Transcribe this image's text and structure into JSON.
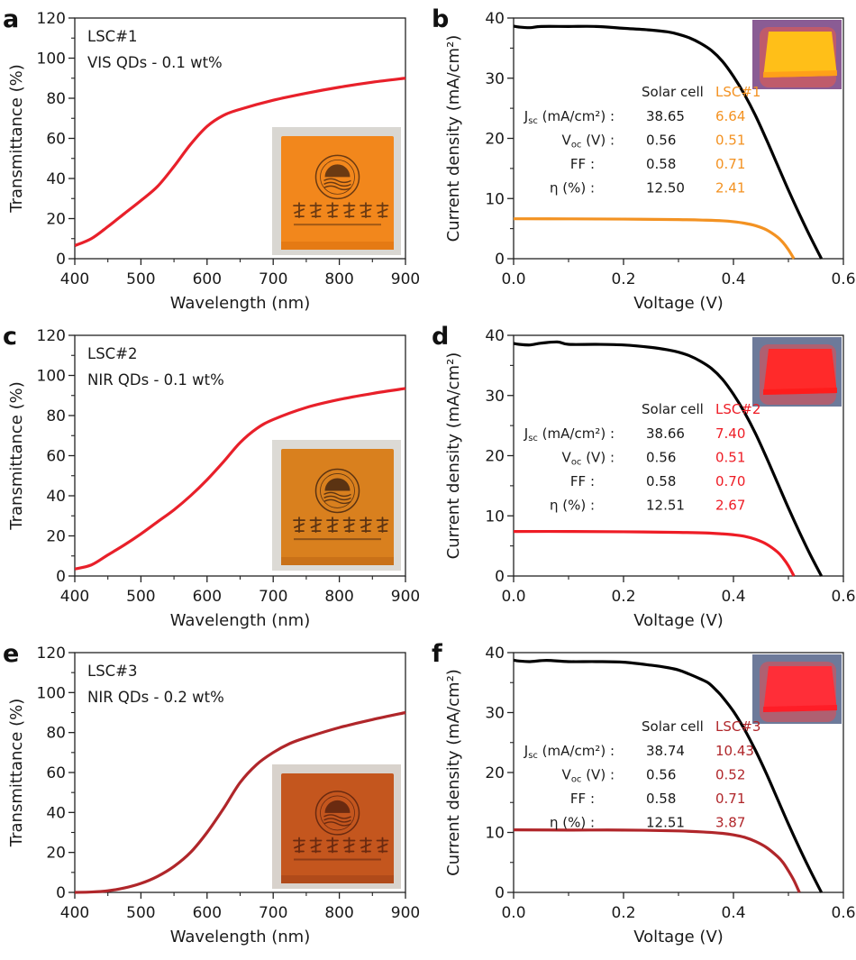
{
  "figure": {
    "panels": [
      "a",
      "b",
      "c",
      "d",
      "e",
      "f"
    ]
  },
  "chart_data": [
    {
      "id": "a",
      "panel_letter": "a",
      "type": "line",
      "xlabel": "Wavelength (nm)",
      "ylabel": "Transmittance (%)",
      "xlim": [
        400,
        900
      ],
      "ylim": [
        0,
        120
      ],
      "xticks": [
        400,
        500,
        600,
        700,
        800,
        900
      ],
      "yticks": [
        0,
        20,
        40,
        60,
        80,
        100,
        120
      ],
      "annotation": [
        "LSC#1",
        "VIS QDs - 0.1 wt%"
      ],
      "inset": "photo of orange LSC slab with Ocean University of China logo",
      "series": [
        {
          "name": "LSC#1",
          "color": "#e8202a",
          "x": [
            400,
            425,
            450,
            475,
            500,
            525,
            550,
            575,
            600,
            625,
            650,
            700,
            750,
            800,
            850,
            900
          ],
          "y": [
            6.5,
            10,
            16,
            22.5,
            29,
            36,
            46,
            57,
            66,
            71.5,
            74.5,
            79,
            82.5,
            85.5,
            88,
            90
          ]
        }
      ]
    },
    {
      "id": "b",
      "panel_letter": "b",
      "type": "line",
      "xlabel": "Voltage (V)",
      "ylabel": "Current density (mA/cm²)",
      "xlim": [
        0.0,
        0.6
      ],
      "ylim": [
        0,
        40
      ],
      "xticks": [
        0.0,
        0.2,
        0.4,
        0.6
      ],
      "xtick_labels": [
        "0.0",
        "0.2",
        "0.4",
        "0.6"
      ],
      "yticks": [
        0,
        10,
        20,
        30,
        40
      ],
      "inset": "photo of LSC slab glowing yellow-orange under UV",
      "table": {
        "headers": [
          "",
          "Solar cell",
          "LSC#1"
        ],
        "rows": [
          {
            "label": "J",
            "label_sub": "sc",
            "label_tail": " (mA/cm²) :",
            "solar": "38.65",
            "lsc": "6.64"
          },
          {
            "label": "V",
            "label_sub": "oc",
            "label_tail": " (V) :",
            "solar": "0.56",
            "lsc": "0.51"
          },
          {
            "label": "FF :",
            "label_sub": "",
            "label_tail": "",
            "solar": "0.58",
            "lsc": "0.71"
          },
          {
            "label": "η (%) :",
            "label_sub": "",
            "label_tail": "",
            "solar": "12.50",
            "lsc": "2.41"
          }
        ]
      },
      "series": [
        {
          "name": "Solar cell",
          "color": "#000000",
          "x": [
            0.0,
            0.01,
            0.03,
            0.05,
            0.1,
            0.15,
            0.2,
            0.25,
            0.28,
            0.3,
            0.32,
            0.34,
            0.36,
            0.38,
            0.4,
            0.42,
            0.44,
            0.46,
            0.48,
            0.5,
            0.52,
            0.54,
            0.56
          ],
          "y": [
            38.65,
            38.5,
            38.4,
            38.6,
            38.6,
            38.6,
            38.3,
            38.0,
            37.7,
            37.3,
            36.7,
            35.8,
            34.6,
            32.8,
            30.3,
            27.3,
            23.8,
            19.8,
            15.6,
            11.4,
            7.4,
            3.6,
            0
          ]
        },
        {
          "name": "LSC#1",
          "color": "#f39222",
          "x": [
            0.0,
            0.1,
            0.2,
            0.3,
            0.35,
            0.38,
            0.4,
            0.42,
            0.44,
            0.46,
            0.48,
            0.49,
            0.5,
            0.51
          ],
          "y": [
            6.64,
            6.62,
            6.58,
            6.5,
            6.4,
            6.3,
            6.15,
            5.9,
            5.5,
            4.8,
            3.6,
            2.7,
            1.5,
            0
          ]
        }
      ]
    },
    {
      "id": "c",
      "panel_letter": "c",
      "type": "line",
      "xlabel": "Wavelength (nm)",
      "ylabel": "Transmittance (%)",
      "xlim": [
        400,
        900
      ],
      "ylim": [
        0,
        120
      ],
      "xticks": [
        400,
        500,
        600,
        700,
        800,
        900
      ],
      "yticks": [
        0,
        20,
        40,
        60,
        80,
        100,
        120
      ],
      "annotation": [
        "LSC#2",
        "NIR QDs - 0.1 wt%"
      ],
      "inset": "photo of orange-brown LSC slab with Ocean University of China logo",
      "series": [
        {
          "name": "LSC#2",
          "color": "#e8202a",
          "x": [
            400,
            425,
            450,
            475,
            500,
            525,
            550,
            575,
            600,
            625,
            650,
            675,
            700,
            750,
            800,
            850,
            900
          ],
          "y": [
            3.5,
            5.5,
            10.5,
            15.5,
            21,
            27,
            33,
            40,
            48,
            57,
            66.5,
            73.5,
            78,
            84,
            88,
            91,
            93.5
          ]
        }
      ]
    },
    {
      "id": "d",
      "panel_letter": "d",
      "type": "line",
      "xlabel": "Voltage (V)",
      "ylabel": "Current density (mA/cm²)",
      "xlim": [
        0.0,
        0.6
      ],
      "ylim": [
        0,
        40
      ],
      "xticks": [
        0.0,
        0.2,
        0.4,
        0.6
      ],
      "xtick_labels": [
        "0.0",
        "0.2",
        "0.4",
        "0.6"
      ],
      "yticks": [
        0,
        10,
        20,
        30,
        40
      ],
      "inset": "photo of LSC slab glowing red under UV",
      "table": {
        "headers": [
          "",
          "Solar cell",
          "LSC#2"
        ],
        "rows": [
          {
            "label": "J",
            "label_sub": "sc",
            "label_tail": " (mA/cm²) :",
            "solar": "38.66",
            "lsc": "7.40"
          },
          {
            "label": "V",
            "label_sub": "oc",
            "label_tail": " (V) :",
            "solar": "0.56",
            "lsc": "0.51"
          },
          {
            "label": "FF :",
            "label_sub": "",
            "label_tail": "",
            "solar": "0.58",
            "lsc": "0.70"
          },
          {
            "label": "η (%) :",
            "label_sub": "",
            "label_tail": "",
            "solar": "12.51",
            "lsc": "2.67"
          }
        ]
      },
      "series": [
        {
          "name": "Solar cell",
          "color": "#000000",
          "x": [
            0.0,
            0.01,
            0.03,
            0.05,
            0.08,
            0.1,
            0.15,
            0.2,
            0.25,
            0.28,
            0.3,
            0.32,
            0.34,
            0.36,
            0.38,
            0.4,
            0.42,
            0.44,
            0.46,
            0.48,
            0.5,
            0.52,
            0.54,
            0.56
          ],
          "y": [
            38.66,
            38.5,
            38.4,
            38.7,
            38.9,
            38.5,
            38.5,
            38.4,
            38.0,
            37.6,
            37.2,
            36.6,
            35.7,
            34.5,
            32.7,
            30.2,
            27.2,
            23.7,
            19.7,
            15.5,
            11.3,
            7.3,
            3.5,
            0
          ]
        },
        {
          "name": "LSC#2",
          "color": "#ee1c25",
          "x": [
            0.0,
            0.1,
            0.2,
            0.3,
            0.35,
            0.38,
            0.4,
            0.42,
            0.44,
            0.46,
            0.48,
            0.49,
            0.5,
            0.51
          ],
          "y": [
            7.4,
            7.4,
            7.35,
            7.25,
            7.15,
            7.0,
            6.85,
            6.6,
            6.1,
            5.3,
            4.0,
            3.0,
            1.7,
            0
          ]
        }
      ]
    },
    {
      "id": "e",
      "panel_letter": "e",
      "type": "line",
      "xlabel": "Wavelength (nm)",
      "ylabel": "Transmittance (%)",
      "xlim": [
        400,
        900
      ],
      "ylim": [
        0,
        120
      ],
      "xticks": [
        400,
        500,
        600,
        700,
        800,
        900
      ],
      "yticks": [
        0,
        20,
        40,
        60,
        80,
        100,
        120
      ],
      "annotation": [
        "LSC#3",
        "NIR QDs - 0.2 wt%"
      ],
      "inset": "photo of dark red-brown LSC slab with Ocean University of China logo",
      "series": [
        {
          "name": "LSC#3",
          "color": "#b0262a",
          "x": [
            400,
            425,
            450,
            475,
            500,
            525,
            550,
            575,
            600,
            625,
            650,
            675,
            700,
            725,
            750,
            800,
            850,
            900
          ],
          "y": [
            0,
            0.2,
            0.8,
            2.2,
            4.5,
            8,
            13,
            20,
            30,
            42,
            55,
            64,
            70,
            74.5,
            77.5,
            82.5,
            86.5,
            90
          ]
        }
      ]
    },
    {
      "id": "f",
      "panel_letter": "f",
      "type": "line",
      "xlabel": "Voltage (V)",
      "ylabel": "Current density (mA/cm²)",
      "xlim": [
        0.0,
        0.6
      ],
      "ylim": [
        0,
        40
      ],
      "xticks": [
        0.0,
        0.2,
        0.4,
        0.6
      ],
      "xtick_labels": [
        "0.0",
        "0.2",
        "0.4",
        "0.6"
      ],
      "yticks": [
        0,
        10,
        20,
        30,
        40
      ],
      "inset": "photo of LSC slab glowing red under UV",
      "table": {
        "headers": [
          "",
          "Solar cell",
          "LSC#3"
        ],
        "rows": [
          {
            "label": "J",
            "label_sub": "sc",
            "label_tail": " (mA/cm²) :",
            "solar": "38.74",
            "lsc": "10.43"
          },
          {
            "label": "V",
            "label_sub": "oc",
            "label_tail": " (V) :",
            "solar": "0.56",
            "lsc": "0.52"
          },
          {
            "label": "FF :",
            "label_sub": "",
            "label_tail": "",
            "solar": "0.58",
            "lsc": "0.71"
          },
          {
            "label": "η (%) :",
            "label_sub": "",
            "label_tail": "",
            "solar": "12.51",
            "lsc": "3.87"
          }
        ]
      },
      "series": [
        {
          "name": "Solar cell",
          "color": "#000000",
          "x": [
            0.0,
            0.01,
            0.03,
            0.06,
            0.1,
            0.15,
            0.2,
            0.25,
            0.28,
            0.3,
            0.32,
            0.34,
            0.355,
            0.37,
            0.38,
            0.4,
            0.42,
            0.44,
            0.46,
            0.48,
            0.5,
            0.52,
            0.54,
            0.56
          ],
          "y": [
            38.74,
            38.6,
            38.5,
            38.7,
            38.5,
            38.5,
            38.4,
            37.9,
            37.5,
            37.1,
            36.4,
            35.6,
            34.9,
            33.6,
            32.6,
            30.2,
            27.2,
            23.7,
            19.8,
            15.6,
            11.4,
            7.4,
            3.6,
            0
          ]
        },
        {
          "name": "LSC#3",
          "color": "#b0262a",
          "x": [
            0.0,
            0.1,
            0.2,
            0.3,
            0.35,
            0.38,
            0.4,
            0.42,
            0.44,
            0.46,
            0.48,
            0.49,
            0.5,
            0.51,
            0.52
          ],
          "y": [
            10.43,
            10.4,
            10.4,
            10.25,
            10.05,
            9.85,
            9.6,
            9.2,
            8.5,
            7.5,
            6.0,
            5.0,
            3.6,
            2.0,
            0
          ]
        }
      ]
    }
  ]
}
